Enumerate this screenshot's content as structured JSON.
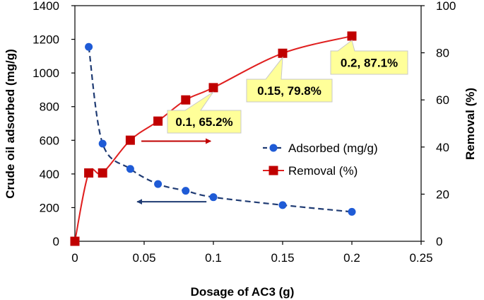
{
  "chart_data": {
    "type": "line",
    "xlabel": "Dosage of AC3 (g)",
    "ylabel": "Crude oil adsorbed (mg/g)",
    "y2label": "Removal (%)",
    "xlim": [
      0,
      0.25
    ],
    "ylim": [
      0,
      1400
    ],
    "y2lim": [
      0,
      100
    ],
    "x_ticks": [
      "0",
      "0.05",
      "0.1",
      "0.15",
      "0.2",
      "0.25"
    ],
    "y_ticks": [
      "0",
      "200",
      "400",
      "600",
      "800",
      "1000",
      "1200",
      "1400"
    ],
    "y2_ticks": [
      "0",
      "20",
      "40",
      "60",
      "80",
      "100"
    ],
    "grid": false,
    "legend_position": "middle-right",
    "series": [
      {
        "name": "Adsorbed (mg/g)",
        "axis": "left",
        "color": "#1f3b73",
        "marker_color": "#1f5bd6",
        "line_style": "dashed",
        "marker": "circle",
        "x": [
          0.01,
          0.02,
          0.04,
          0.06,
          0.08,
          0.1,
          0.15,
          0.2
        ],
        "y": [
          1155,
          580,
          430,
          340,
          300,
          262,
          215,
          175
        ]
      },
      {
        "name": "Removal (%)",
        "axis": "right",
        "color": "#e02020",
        "marker_color": "#c00000",
        "line_style": "solid",
        "marker": "square",
        "x": [
          0,
          0.01,
          0.02,
          0.04,
          0.06,
          0.08,
          0.1,
          0.15,
          0.2
        ],
        "y": [
          0,
          29,
          29,
          42.9,
          51,
          60,
          65.2,
          79.8,
          87.1
        ]
      }
    ],
    "annotations": [
      {
        "text": "0.1, 65.2%",
        "x": 0.1,
        "y": 65.2,
        "axis": "right"
      },
      {
        "text": "0.15, 79.8%",
        "x": 0.15,
        "y": 79.8,
        "axis": "right"
      },
      {
        "text": "0.2, 87.1%",
        "x": 0.2,
        "y": 87.1,
        "axis": "right"
      }
    ],
    "arrows": [
      {
        "direction": "right",
        "x_from": 0.048,
        "x_to": 0.098,
        "y": 42.5,
        "axis": "right",
        "color": "#c00000"
      },
      {
        "direction": "left",
        "x_from": 0.095,
        "x_to": 0.045,
        "y": 235,
        "axis": "left",
        "color": "#1f3b73"
      }
    ],
    "callout_fill": "#ffff99"
  }
}
